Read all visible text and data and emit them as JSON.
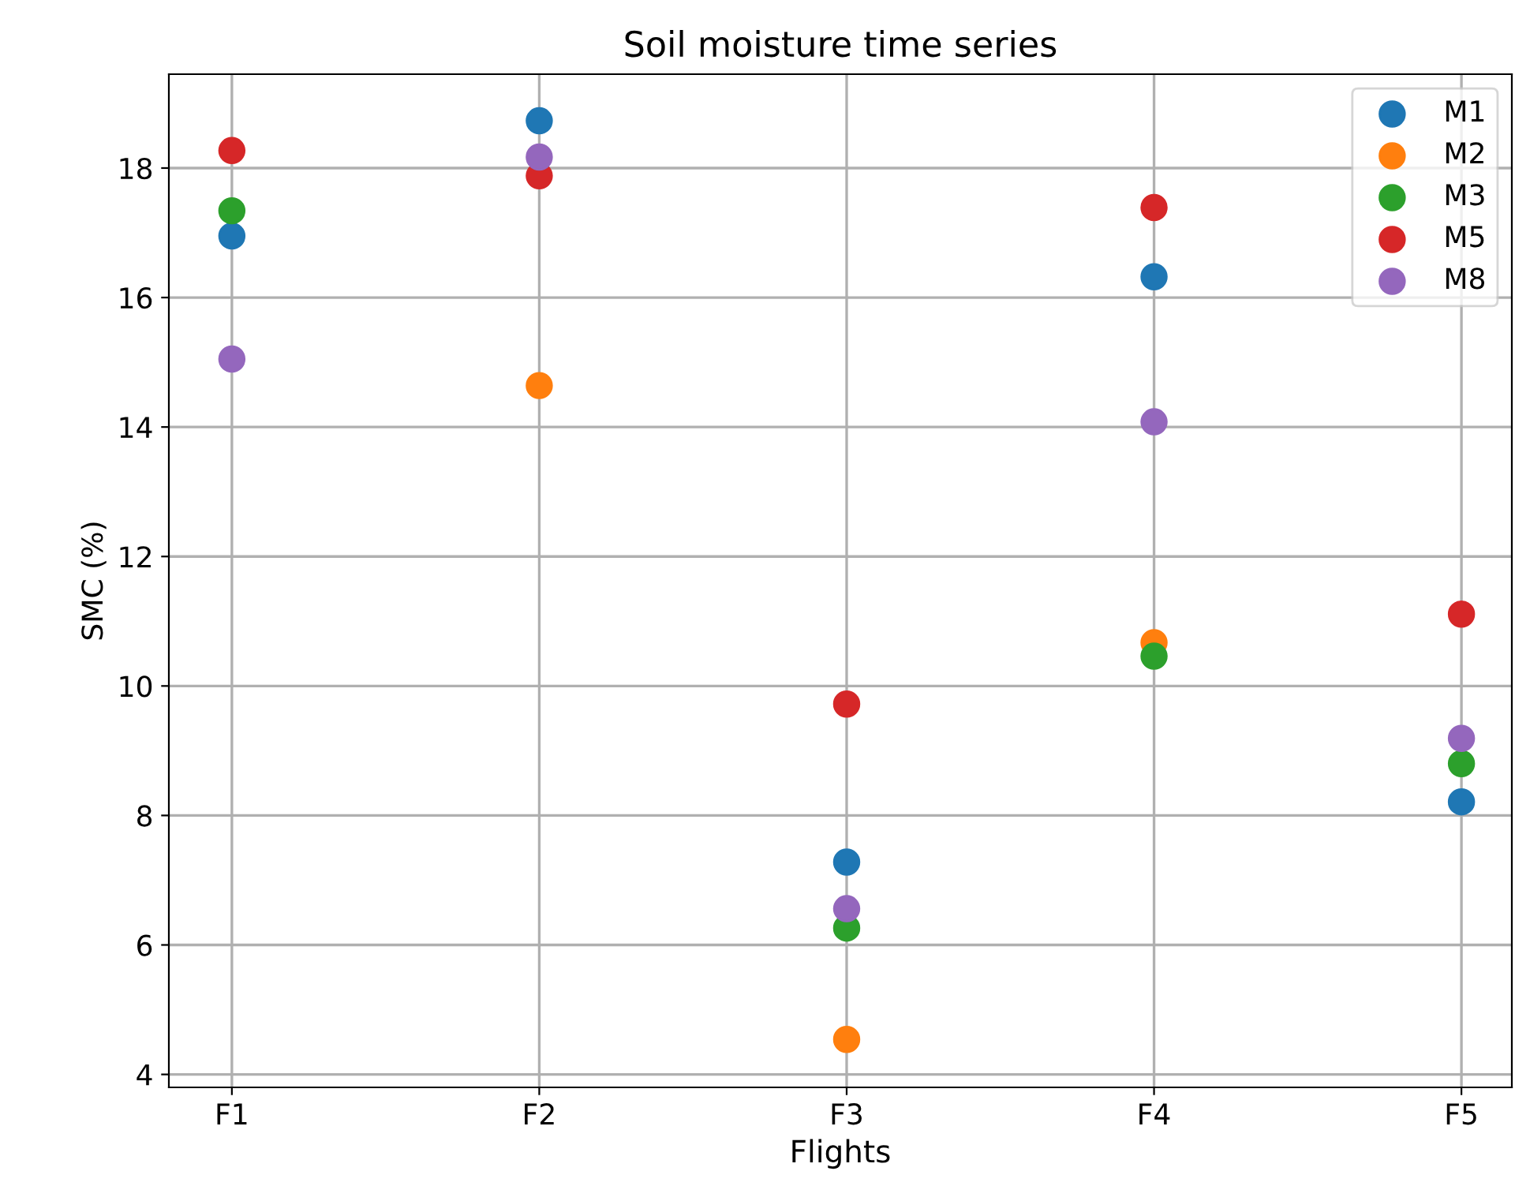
{
  "chart_data": {
    "type": "scatter",
    "title": "Soil moisture time series",
    "xlabel": "Flights",
    "ylabel": "SMC (%)",
    "categories": [
      "F1",
      "F2",
      "F3",
      "F4",
      "F5"
    ],
    "series": [
      {
        "name": "M1",
        "color": "#1f77b4",
        "values": [
          16.95,
          18.73,
          7.28,
          16.32,
          8.21
        ]
      },
      {
        "name": "M2",
        "color": "#ff7f0e",
        "values": [
          null,
          14.64,
          4.54,
          10.67,
          null
        ]
      },
      {
        "name": "M3",
        "color": "#2ca02c",
        "values": [
          17.34,
          null,
          6.26,
          10.46,
          8.8
        ]
      },
      {
        "name": "M5",
        "color": "#d62728",
        "values": [
          18.27,
          17.88,
          9.72,
          17.39,
          11.11
        ]
      },
      {
        "name": "M8",
        "color": "#9467bd",
        "values": [
          15.05,
          18.17,
          6.56,
          14.08,
          9.19
        ]
      }
    ],
    "ylim": [
      3.8,
      19.45
    ],
    "yticks": [
      4,
      6,
      8,
      10,
      12,
      14,
      16,
      18
    ],
    "grid": true,
    "legend": "top right",
    "marker": "circle"
  }
}
